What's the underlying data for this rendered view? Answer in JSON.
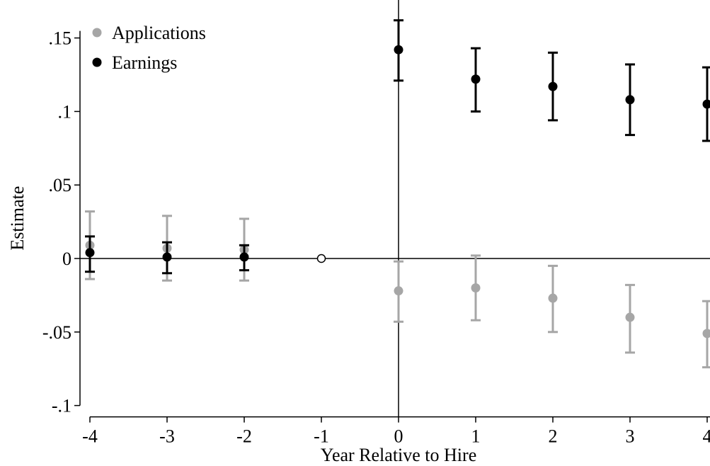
{
  "chart_data": {
    "type": "scatter",
    "title": "",
    "xlabel": "Year Relative to Hire",
    "ylabel": "Estimate",
    "xlim": [
      -4,
      4
    ],
    "ylim": [
      -0.1,
      0.15
    ],
    "x_ticks": [
      -4,
      -3,
      -2,
      -1,
      0,
      1,
      2,
      3,
      4
    ],
    "x_tick_labels": [
      "-4",
      "-3",
      "-2",
      "-1",
      "0",
      "1",
      "2",
      "3",
      "4"
    ],
    "y_ticks": [
      -0.1,
      -0.05,
      0,
      0.05,
      0.1,
      0.15
    ],
    "y_tick_labels": [
      "-.1",
      "-.05",
      "0",
      ".05",
      ".1",
      ".15"
    ],
    "grid": false,
    "legend": {
      "placement": "top-left"
    },
    "reference_lines": {
      "horizontal": 0,
      "vertical": 0
    },
    "omitted_point": {
      "x": -1,
      "y": 0
    },
    "series": [
      {
        "name": "Applications",
        "color": "#a6a6a6",
        "x": [
          -4,
          -3,
          -2,
          0,
          1,
          2,
          3,
          4
        ],
        "y": [
          0.009,
          0.007,
          0.006,
          -0.022,
          -0.02,
          -0.027,
          -0.04,
          -0.051
        ],
        "ci_low": [
          -0.014,
          -0.015,
          -0.015,
          -0.043,
          -0.042,
          -0.05,
          -0.064,
          -0.074
        ],
        "ci_high": [
          0.032,
          0.029,
          0.027,
          -0.002,
          0.002,
          -0.005,
          -0.018,
          -0.029
        ]
      },
      {
        "name": "Earnings",
        "color": "#000000",
        "x": [
          -4,
          -3,
          -2,
          0,
          1,
          2,
          3,
          4
        ],
        "y": [
          0.004,
          0.001,
          0.001,
          0.142,
          0.122,
          0.117,
          0.108,
          0.105
        ],
        "ci_low": [
          -0.009,
          -0.01,
          -0.008,
          0.121,
          0.1,
          0.094,
          0.084,
          0.08
        ],
        "ci_high": [
          0.015,
          0.011,
          0.009,
          0.162,
          0.143,
          0.14,
          0.132,
          0.13
        ]
      }
    ]
  }
}
